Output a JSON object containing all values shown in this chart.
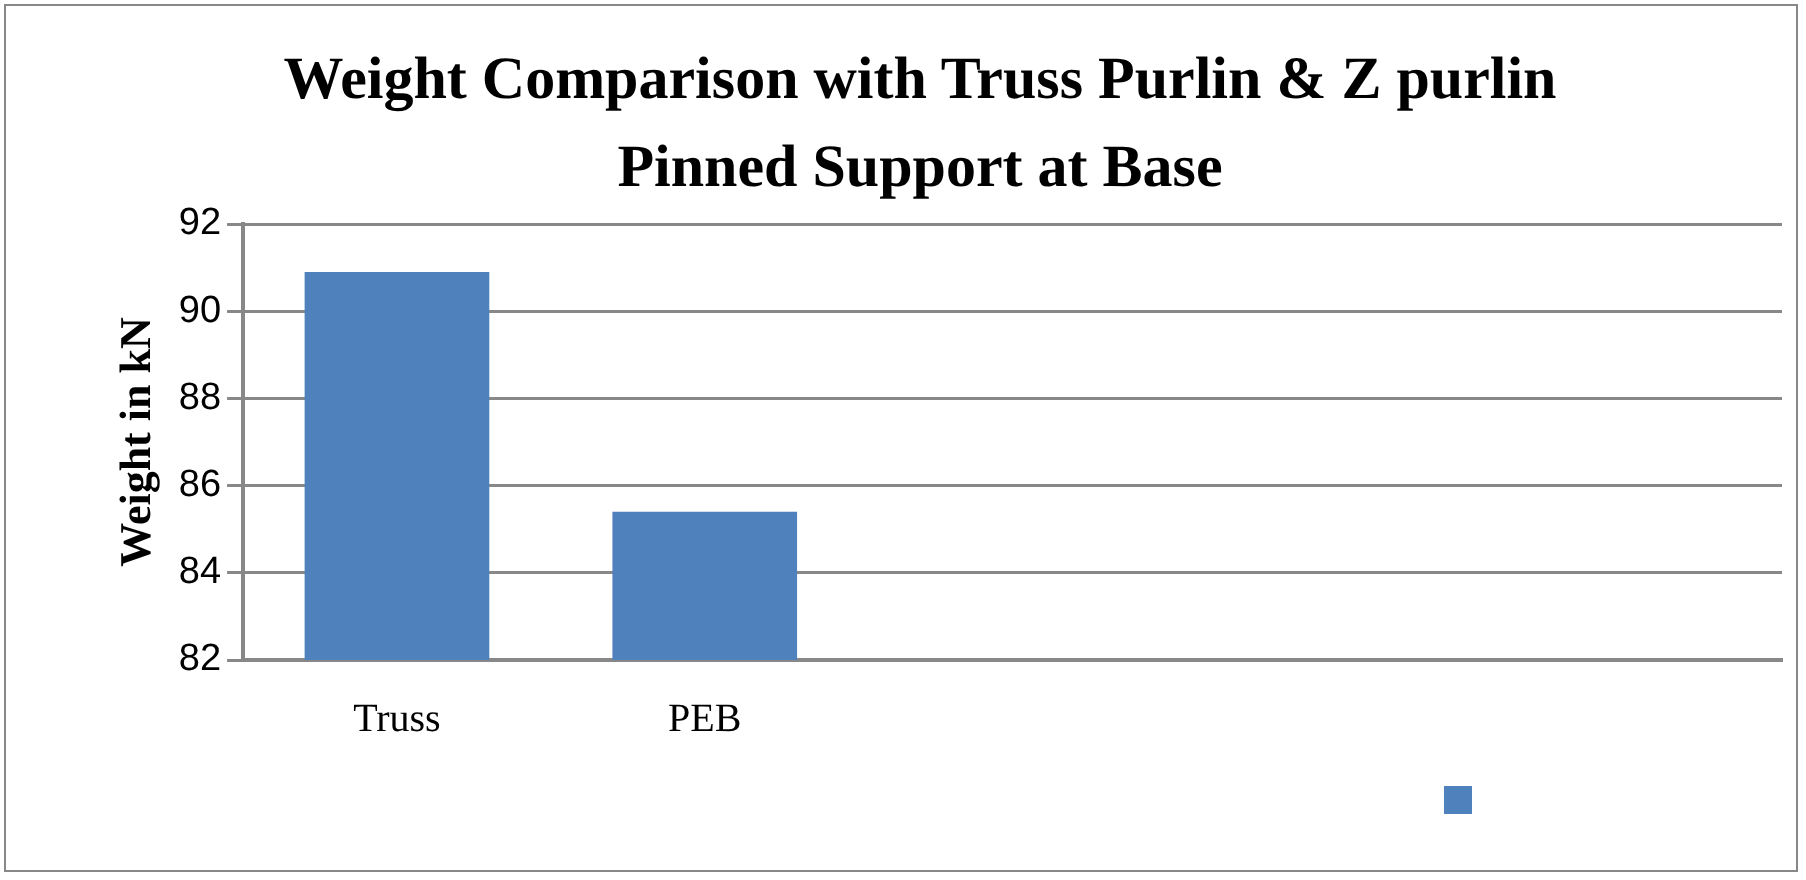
{
  "chart_data": {
    "type": "bar",
    "title": "Weight Comparison with Truss Purlin & Z purlin Pinned Support at Base",
    "ylabel": "Weight in kN",
    "categories": [
      "Truss",
      "PEB",
      null,
      null,
      null
    ],
    "series": [
      {
        "color": "#4f81bd",
        "values": [
          90.9,
          85.4,
          null,
          null,
          null
        ]
      }
    ],
    "ylim": [
      82,
      92
    ],
    "yticks": [
      82,
      84,
      86,
      88,
      90,
      92
    ],
    "grid": "y"
  }
}
